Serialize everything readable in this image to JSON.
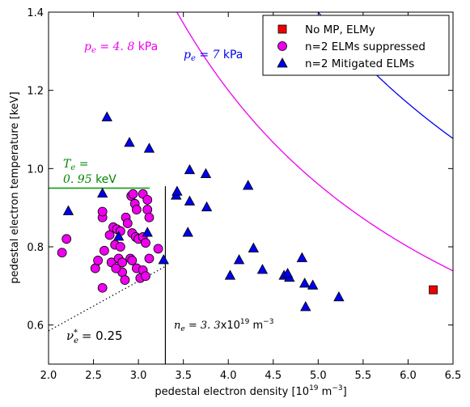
{
  "chart_data": {
    "type": "scatter",
    "xlabel": "pedestal electron density [10",
    "xlabel_sup": "19",
    "xlabel_unit": " m",
    "xlabel_unit_sup": "−3",
    "xlabel_end": "]",
    "ylabel": "pedestal electron temperature [keV]",
    "xlim": [
      2.0,
      6.5
    ],
    "ylim": [
      0.5,
      1.4
    ],
    "xticks": [
      2.0,
      2.5,
      3.0,
      3.5,
      4.0,
      4.5,
      5.0,
      5.5,
      6.0,
      6.5
    ],
    "xtick_labels": [
      "2.0",
      "2.5",
      "3.0",
      "3.5",
      "4.0",
      "4.5",
      "5.0",
      "5.5",
      "6.0",
      "6.5"
    ],
    "yticks": [
      0.6,
      0.8,
      1.0,
      1.2,
      1.4
    ],
    "ytick_labels": [
      "0.6",
      "0.8",
      "1.0",
      "1.2",
      "1.4"
    ],
    "grid": false,
    "legend_position": "top-right",
    "series": [
      {
        "name": "No MP, ELMy",
        "marker": "square",
        "color": "#ee0000",
        "points": [
          [
            6.28,
            0.69
          ]
        ]
      },
      {
        "name": "n=2 ELMs suppressed",
        "marker": "circle",
        "color": "#ee00ee",
        "points": [
          [
            2.15,
            0.785
          ],
          [
            2.2,
            0.82
          ],
          [
            2.52,
            0.745
          ],
          [
            2.6,
            0.875
          ],
          [
            2.6,
            0.89
          ],
          [
            2.62,
            0.79
          ],
          [
            2.68,
            0.83
          ],
          [
            2.72,
            0.85
          ],
          [
            2.76,
            0.845
          ],
          [
            2.8,
            0.84
          ],
          [
            2.74,
            0.805
          ],
          [
            2.7,
            0.76
          ],
          [
            2.78,
            0.77
          ],
          [
            2.82,
            0.76
          ],
          [
            2.86,
            0.875
          ],
          [
            2.88,
            0.86
          ],
          [
            2.92,
            0.93
          ],
          [
            2.94,
            0.935
          ],
          [
            2.96,
            0.91
          ],
          [
            2.98,
            0.895
          ],
          [
            3.05,
            0.935
          ],
          [
            3.1,
            0.92
          ],
          [
            3.1,
            0.895
          ],
          [
            3.12,
            0.875
          ],
          [
            2.93,
            0.835
          ],
          [
            2.97,
            0.825
          ],
          [
            3.0,
            0.82
          ],
          [
            3.05,
            0.825
          ],
          [
            3.08,
            0.81
          ],
          [
            2.91,
            0.77
          ],
          [
            2.93,
            0.765
          ],
          [
            2.98,
            0.745
          ],
          [
            3.05,
            0.74
          ],
          [
            3.02,
            0.72
          ],
          [
            3.08,
            0.725
          ],
          [
            2.82,
            0.735
          ],
          [
            2.85,
            0.715
          ],
          [
            2.75,
            0.745
          ],
          [
            3.12,
            0.77
          ],
          [
            3.22,
            0.795
          ],
          [
            2.6,
            0.695
          ],
          [
            2.8,
            0.8
          ],
          [
            2.55,
            0.765
          ]
        ]
      },
      {
        "name": "n=2 Mitigated ELMs",
        "marker": "triangle",
        "color": "#0000ee",
        "points": [
          [
            2.65,
            1.13
          ],
          [
            2.9,
            1.065
          ],
          [
            3.12,
            1.05
          ],
          [
            2.22,
            0.89
          ],
          [
            2.6,
            0.935
          ],
          [
            3.42,
            0.93
          ],
          [
            3.43,
            0.94
          ],
          [
            3.57,
            0.995
          ],
          [
            3.75,
            0.985
          ],
          [
            3.57,
            0.915
          ],
          [
            3.76,
            0.9
          ],
          [
            4.22,
            0.955
          ],
          [
            3.55,
            0.835
          ],
          [
            2.78,
            0.825
          ],
          [
            3.1,
            0.835
          ],
          [
            3.28,
            0.765
          ],
          [
            4.12,
            0.765
          ],
          [
            4.28,
            0.795
          ],
          [
            4.38,
            0.74
          ],
          [
            4.02,
            0.725
          ],
          [
            4.62,
            0.725
          ],
          [
            4.68,
            0.72
          ],
          [
            4.66,
            0.73
          ],
          [
            4.82,
            0.77
          ],
          [
            4.85,
            0.705
          ],
          [
            4.94,
            0.7
          ],
          [
            4.86,
            0.645
          ],
          [
            5.23,
            0.67
          ]
        ]
      }
    ],
    "curves": [
      {
        "name": "p_e = 4.8 kPa",
        "constant": 4.8,
        "color": "#ee00ee"
      },
      {
        "name": "p_e = 7 kPa",
        "constant": 7.0,
        "color": "#0000ee"
      }
    ],
    "reference_lines": {
      "te_horizontal": {
        "y": 0.95,
        "x_start": 2.0,
        "x_end": 3.125,
        "color": "#009900"
      },
      "ne_vertical": {
        "x": 3.3,
        "y_start": 0.5,
        "y_end": 0.955,
        "color": "#000000"
      },
      "nu_dotted": {
        "from": [
          2.0,
          0.585
        ],
        "to": [
          3.3,
          0.75
        ],
        "color": "#000000"
      }
    },
    "annotations": {
      "pe48_sym": "p",
      "pe48_sub": "e",
      "pe48_eq": " = 4. 8",
      "pe48_unit": " kPa",
      "pe7_sym": "p",
      "pe7_sub": "e",
      "pe7_eq": " = 7",
      "pe7_unit": " kPa",
      "te_sym": "T",
      "te_sub": "e",
      "te_eq": " =",
      "te_val": "0. 95",
      "te_unit": " keV",
      "ne_sym": "n",
      "ne_sub": "e",
      "ne_eq": " = 3. 3",
      "ne_x": "x10",
      "ne_exp": "19",
      "ne_unit": " m",
      "ne_unit_exp": "−3",
      "nu_sym": "ν",
      "nu_sub": "e",
      "nu_sup": "*",
      "nu_eq": " = ",
      "nu_val": " 0.25"
    }
  }
}
